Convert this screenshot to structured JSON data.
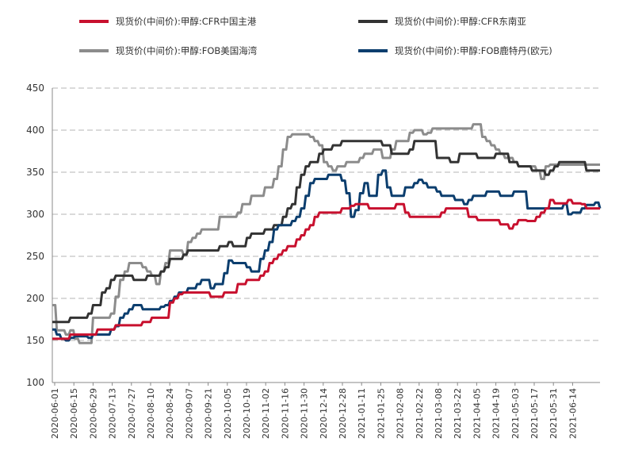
{
  "chart_data": {
    "type": "line",
    "title": "",
    "xlabel": "",
    "ylabel": "",
    "ylim": [
      100,
      450
    ],
    "yticks": [
      100,
      150,
      200,
      250,
      300,
      350,
      400,
      450
    ],
    "grid": "horizontal dashed",
    "legend_position": "top",
    "x_tick_labels": [
      "2020-06-01",
      "2020-06-15",
      "2020-06-29",
      "2020-07-13",
      "2020-07-27",
      "2020-08-10",
      "2020-08-24",
      "2020-09-07",
      "2020-09-21",
      "2020-10-05",
      "2020-10-19",
      "2020-11-02",
      "2020-11-16",
      "2020-11-30",
      "2020-12-14",
      "2020-12-28",
      "2021-01-11",
      "2021-01-25",
      "2021-02-08",
      "2021-02-22",
      "2021-03-08",
      "2021-03-22",
      "2021-04-05",
      "2021-04-19",
      "2021-05-03",
      "2021-05-17",
      "2021-05-31",
      "2021-06-14"
    ],
    "series": [
      {
        "name": "现货价(中间价):甲醇:CFR中国主港",
        "color": "#c8102e",
        "values": [
          152,
          152,
          152,
          152,
          157,
          157,
          157,
          157,
          157,
          157,
          163,
          163,
          163,
          163,
          168,
          168,
          168,
          168,
          168,
          168,
          172,
          172,
          177,
          177,
          177,
          177,
          195,
          200,
          205,
          207,
          207,
          207,
          207,
          207,
          207,
          202,
          202,
          202,
          207,
          207,
          207,
          217,
          217,
          222,
          222,
          222,
          227,
          232,
          242,
          247,
          252,
          257,
          262,
          262,
          270,
          275,
          282,
          287,
          297,
          302,
          302,
          302,
          302,
          302,
          307,
          307,
          310,
          312,
          312,
          312,
          307,
          307,
          307,
          307,
          307,
          307,
          312,
          312,
          302,
          297,
          297,
          297,
          297,
          297,
          297,
          297,
          302,
          307,
          307,
          307,
          307,
          307,
          297,
          297,
          293,
          293,
          293,
          293,
          293,
          288,
          288,
          283,
          288,
          293,
          293,
          292,
          292,
          297,
          302,
          307,
          317,
          313,
          313,
          313,
          317,
          313,
          313,
          312,
          307,
          307,
          307,
          307
        ]
      },
      {
        "name": "现货价(中间价):甲醇:CFR东南亚",
        "color": "#333333",
        "values": [
          172,
          172,
          172,
          172,
          177,
          177,
          177,
          177,
          182,
          192,
          192,
          207,
          212,
          222,
          227,
          227,
          227,
          227,
          222,
          222,
          222,
          227,
          227,
          227,
          232,
          237,
          247,
          247,
          247,
          252,
          257,
          257,
          257,
          257,
          257,
          257,
          257,
          262,
          262,
          267,
          262,
          262,
          262,
          272,
          277,
          277,
          277,
          282,
          282,
          287,
          287,
          297,
          307,
          312,
          332,
          347,
          357,
          362,
          362,
          372,
          377,
          377,
          382,
          382,
          387,
          387,
          387,
          387,
          387,
          387,
          387,
          387,
          387,
          382,
          382,
          372,
          372,
          372,
          372,
          377,
          387,
          387,
          387,
          387,
          387,
          367,
          367,
          367,
          362,
          362,
          372,
          372,
          372,
          372,
          367,
          367,
          367,
          367,
          372,
          372,
          372,
          362,
          362,
          357,
          357,
          357,
          352,
          352,
          352,
          347,
          352,
          357,
          362,
          362,
          362,
          362,
          362,
          362,
          352,
          352,
          352,
          352
        ]
      },
      {
        "name": "现货价(中间价):甲醇:FOB美国海湾",
        "color": "#8c8c8c",
        "values": [
          192,
          162,
          162,
          157,
          162,
          152,
          147,
          147,
          147,
          177,
          177,
          177,
          177,
          182,
          202,
          222,
          232,
          242,
          242,
          242,
          237,
          232,
          227,
          217,
          232,
          242,
          257,
          257,
          257,
          252,
          267,
          272,
          277,
          282,
          282,
          282,
          282,
          297,
          297,
          297,
          297,
          302,
          312,
          312,
          322,
          322,
          322,
          332,
          332,
          342,
          357,
          377,
          392,
          395,
          395,
          395,
          395,
          392,
          387,
          382,
          362,
          357,
          352,
          357,
          357,
          362,
          362,
          362,
          367,
          372,
          372,
          377,
          377,
          367,
          367,
          377,
          387,
          387,
          387,
          397,
          400,
          400,
          395,
          397,
          402,
          402,
          402,
          402,
          402,
          402,
          402,
          402,
          402,
          407,
          407,
          392,
          387,
          382,
          377,
          372,
          367,
          367,
          362,
          357,
          357,
          357,
          357,
          352,
          342,
          357,
          359,
          359,
          359,
          359,
          359,
          359,
          359,
          359,
          359,
          359,
          359,
          359
        ]
      },
      {
        "name": "现货价(中间价):甲醇:FOB鹿特丹(欧元)",
        "color": "#0c3e6e",
        "values": [
          163,
          157,
          152,
          150,
          153,
          155,
          155,
          155,
          153,
          157,
          157,
          157,
          157,
          163,
          167,
          177,
          182,
          187,
          192,
          192,
          187,
          187,
          187,
          187,
          190,
          192,
          197,
          202,
          207,
          207,
          212,
          212,
          217,
          222,
          222,
          212,
          217,
          217,
          230,
          245,
          242,
          242,
          242,
          237,
          232,
          232,
          247,
          257,
          267,
          282,
          287,
          287,
          287,
          292,
          297,
          307,
          322,
          337,
          342,
          342,
          342,
          347,
          347,
          347,
          340,
          325,
          297,
          305,
          325,
          337,
          322,
          322,
          347,
          352,
          332,
          322,
          322,
          322,
          332,
          332,
          337,
          341,
          337,
          332,
          332,
          327,
          322,
          322,
          322,
          317,
          317,
          312,
          317,
          322,
          322,
          322,
          327,
          327,
          327,
          322,
          322,
          322,
          327,
          327,
          327,
          307,
          307,
          307,
          307,
          307,
          307,
          307,
          307,
          312,
          300,
          302,
          302,
          307,
          311,
          311,
          314,
          307
        ]
      }
    ]
  }
}
